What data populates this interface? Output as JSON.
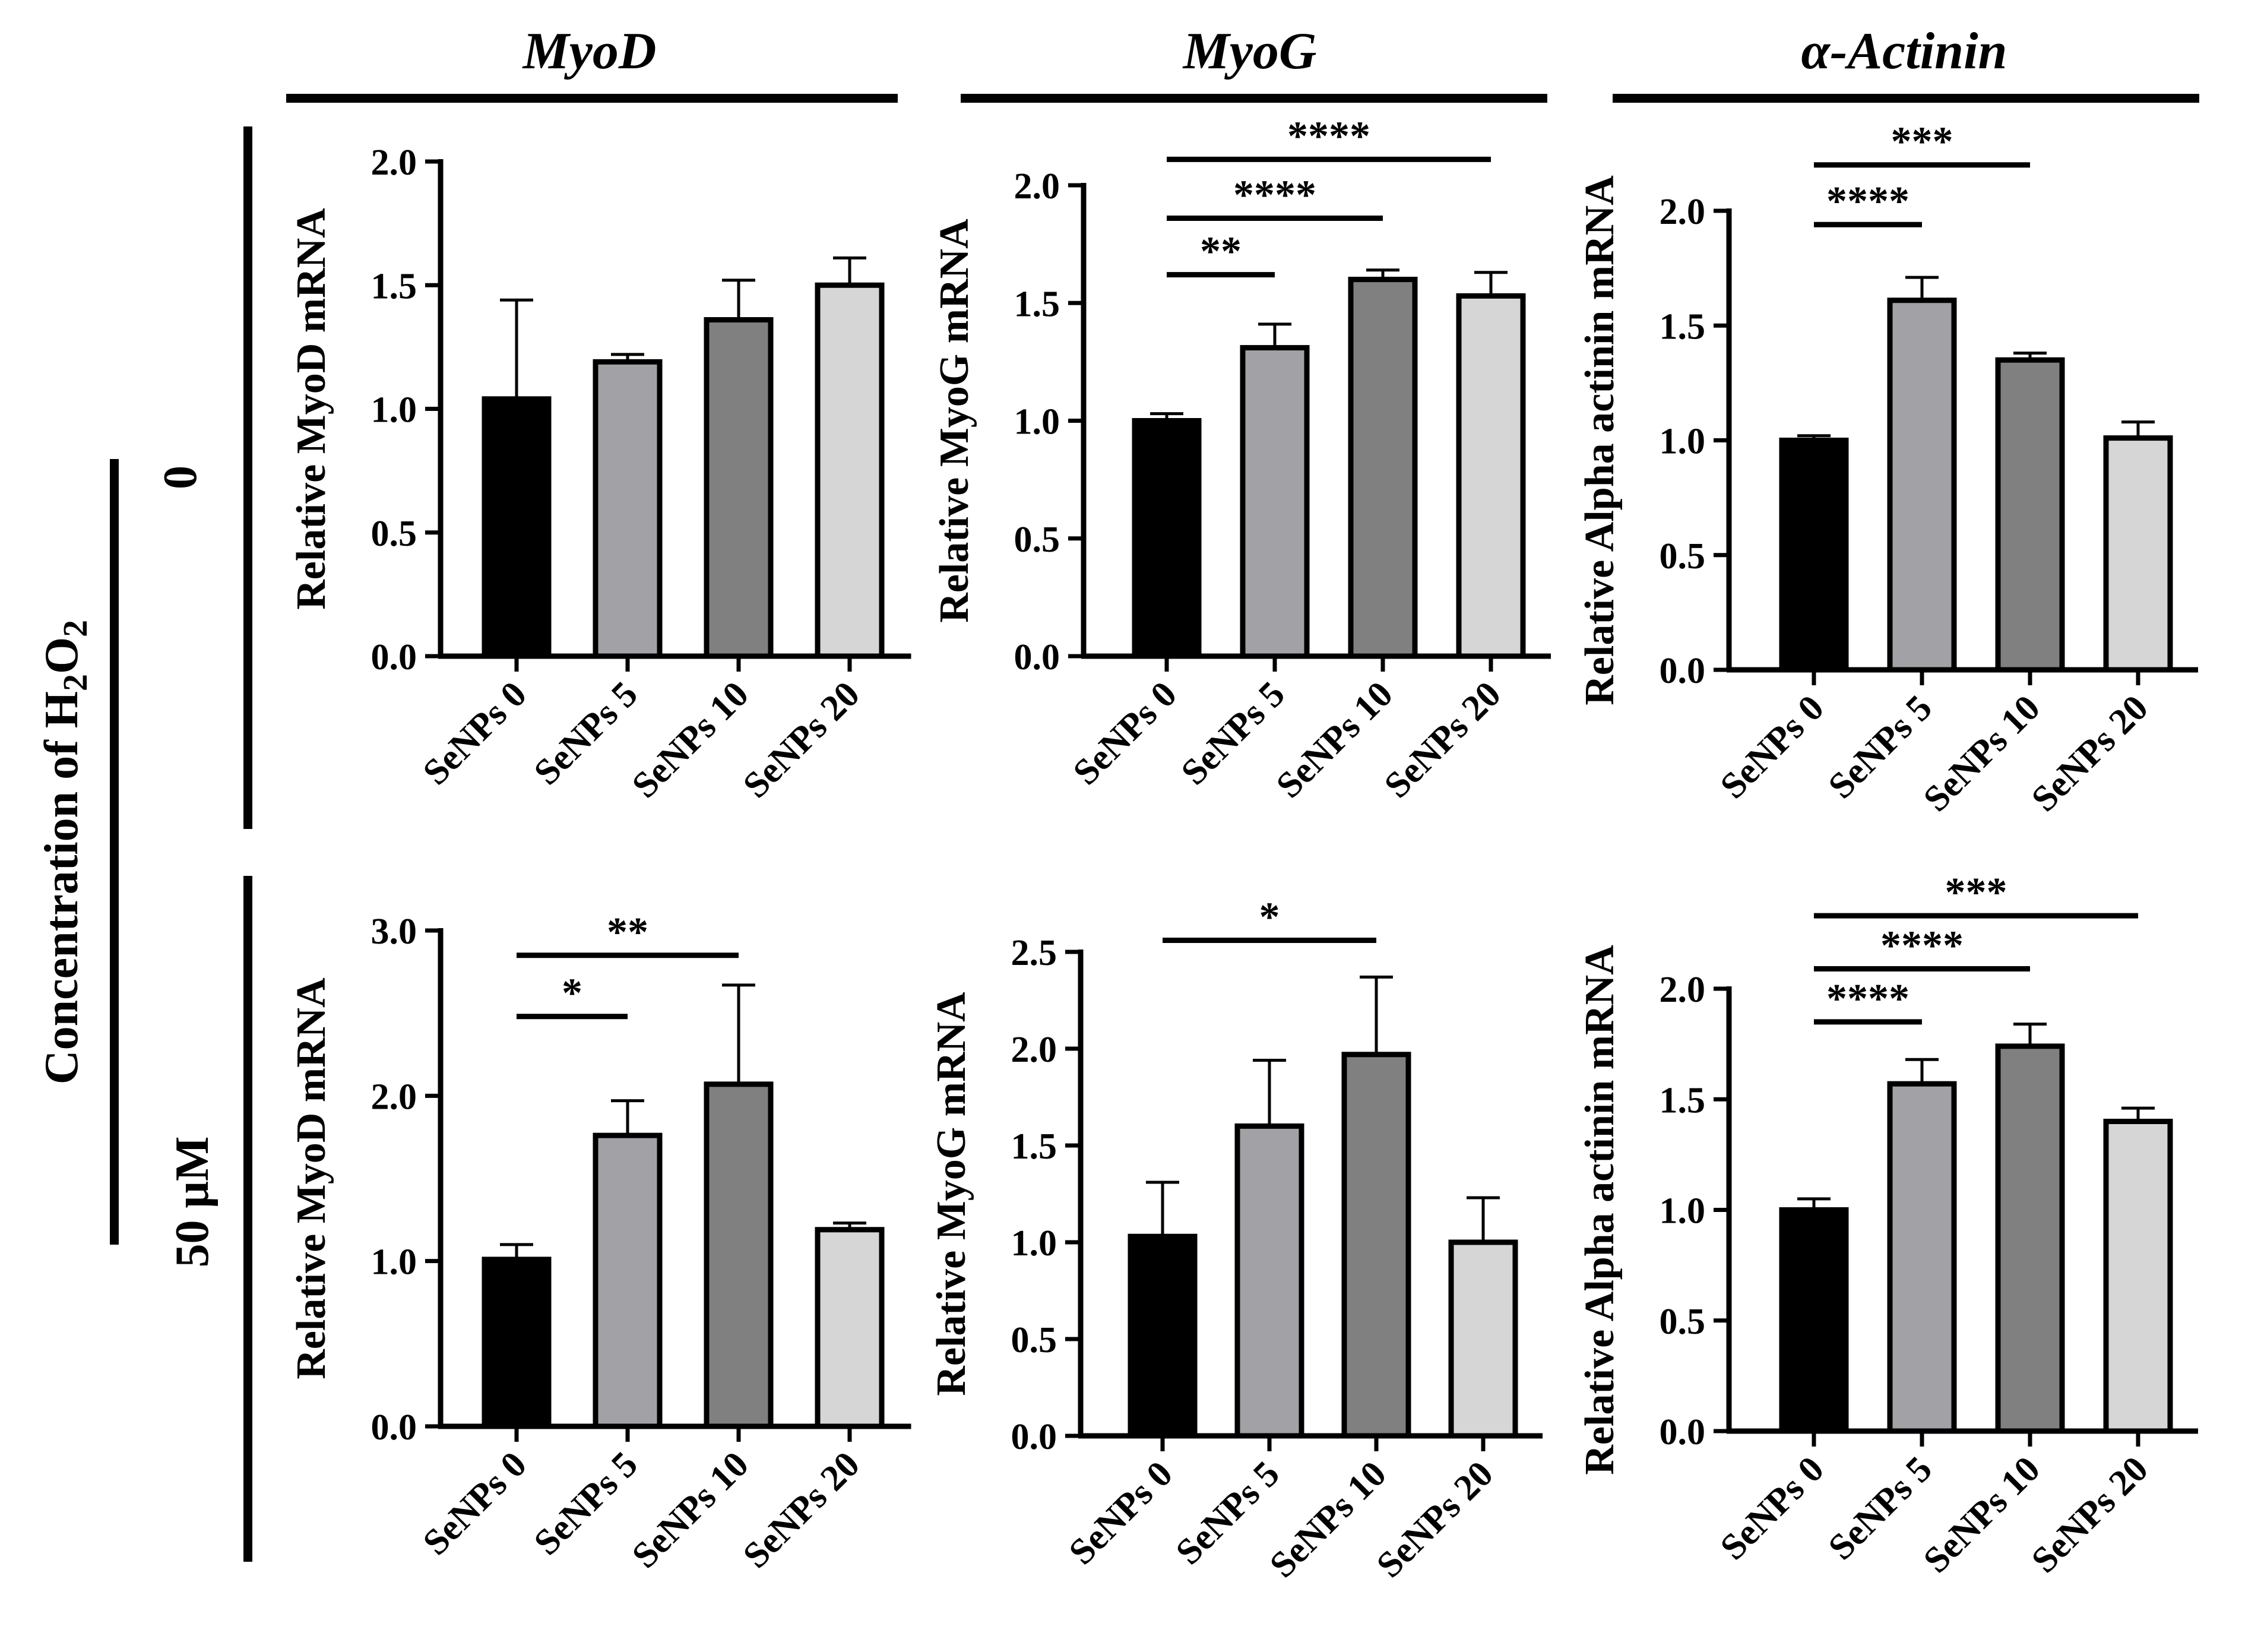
{
  "figure": {
    "column_titles": [
      "MyoD",
      "MyoG",
      "α-Actinin"
    ],
    "row_group_label": "Concentration of H2O2",
    "row_group_label_parts": [
      "Concentration of H",
      "2",
      "O",
      "2"
    ],
    "row_labels": [
      "0",
      "50 μM"
    ]
  },
  "colors": {
    "bar_fills": [
      "#000000",
      "#a2a2a6",
      "#808080",
      "#d6d6d6"
    ],
    "ink": "#000000"
  },
  "chart_data": [
    {
      "type": "bar",
      "id": "myod-0",
      "title": "MyoD",
      "row_label": "0",
      "ylabel": "Relative MyoD mRNA",
      "ylim": [
        0,
        2.0
      ],
      "yticks": [
        0.0,
        0.5,
        1.0,
        1.5,
        2.0
      ],
      "categories": [
        "SeNPs 0",
        "SeNPs 5",
        "SeNPs 10",
        "SeNPs 20"
      ],
      "values": [
        1.04,
        1.19,
        1.36,
        1.5
      ],
      "errors": [
        0.4,
        0.03,
        0.16,
        0.11
      ],
      "significance": []
    },
    {
      "type": "bar",
      "id": "myog-0",
      "title": "MyoG",
      "row_label": "0",
      "ylabel": "Relative MyoG mRNA",
      "ylim": [
        0,
        2.0
      ],
      "yticks": [
        0.0,
        0.5,
        1.0,
        1.5,
        2.0
      ],
      "categories": [
        "SeNPs 0",
        "SeNPs 5",
        "SeNPs 10",
        "SeNPs 20"
      ],
      "values": [
        1.0,
        1.31,
        1.6,
        1.53
      ],
      "errors": [
        0.03,
        0.1,
        0.04,
        0.1
      ],
      "significance": [
        {
          "from": 0,
          "to": 1,
          "label": "**",
          "level": 1.62
        },
        {
          "from": 0,
          "to": 2,
          "label": "****",
          "level": 1.86
        },
        {
          "from": 0,
          "to": 3,
          "label": "****",
          "level": 2.11
        }
      ]
    },
    {
      "type": "bar",
      "id": "actinin-0",
      "title": "α-Actinin",
      "row_label": "0",
      "ylabel": "Relative Alpha actinin mRNA",
      "ylim": [
        0,
        2.0
      ],
      "yticks": [
        0.0,
        0.5,
        1.0,
        1.5,
        2.0
      ],
      "categories": [
        "SeNPs 0",
        "SeNPs 5",
        "SeNPs 10",
        "SeNPs 20"
      ],
      "values": [
        1.0,
        1.61,
        1.35,
        1.01
      ],
      "errors": [
        0.02,
        0.1,
        0.03,
        0.07
      ],
      "significance": [
        {
          "from": 0,
          "to": 1,
          "label": "****",
          "level": 1.94
        },
        {
          "from": 0,
          "to": 2,
          "label": "***",
          "level": 2.2
        }
      ]
    },
    {
      "type": "bar",
      "id": "myod-50",
      "title": "MyoD",
      "row_label": "50 μM",
      "ylabel": "Relative MyoD mRNA",
      "ylim": [
        0,
        3.0
      ],
      "yticks": [
        0.0,
        1.0,
        2.0,
        3.0
      ],
      "categories": [
        "SeNPs 0",
        "SeNPs 5",
        "SeNPs 10",
        "SeNPs 20"
      ],
      "values": [
        1.01,
        1.76,
        2.07,
        1.19
      ],
      "errors": [
        0.09,
        0.21,
        0.6,
        0.04
      ],
      "significance": [
        {
          "from": 0,
          "to": 1,
          "label": "*",
          "level": 2.48
        },
        {
          "from": 0,
          "to": 2,
          "label": "**",
          "level": 2.85
        }
      ]
    },
    {
      "type": "bar",
      "id": "myog-50",
      "title": "MyoG",
      "row_label": "50 μM",
      "ylabel": "Relative MyoG mRNA",
      "ylim": [
        0,
        2.5
      ],
      "yticks": [
        0.0,
        0.5,
        1.0,
        1.5,
        2.0,
        2.5
      ],
      "categories": [
        "SeNPs 0",
        "SeNPs 5",
        "SeNPs 10",
        "SeNPs 20"
      ],
      "values": [
        1.03,
        1.6,
        1.97,
        1.0
      ],
      "errors": [
        0.28,
        0.34,
        0.4,
        0.23
      ],
      "significance": [
        {
          "from": 0,
          "to": 2,
          "label": "*",
          "level": 2.56
        }
      ]
    },
    {
      "type": "bar",
      "id": "actinin-50",
      "title": "α-Actinin",
      "row_label": "50 μM",
      "ylabel": "Relative Alpha actinin mRNA",
      "ylim": [
        0,
        2.0
      ],
      "yticks": [
        0.0,
        0.5,
        1.0,
        1.5,
        2.0
      ],
      "categories": [
        "SeNPs 0",
        "SeNPs 5",
        "SeNPs 10",
        "SeNPs 20"
      ],
      "values": [
        1.0,
        1.57,
        1.74,
        1.4
      ],
      "errors": [
        0.05,
        0.11,
        0.1,
        0.06
      ],
      "significance": [
        {
          "from": 0,
          "to": 1,
          "label": "****",
          "level": 1.85
        },
        {
          "from": 0,
          "to": 2,
          "label": "****",
          "level": 2.09
        },
        {
          "from": 0,
          "to": 3,
          "label": "***",
          "level": 2.33
        }
      ]
    }
  ]
}
